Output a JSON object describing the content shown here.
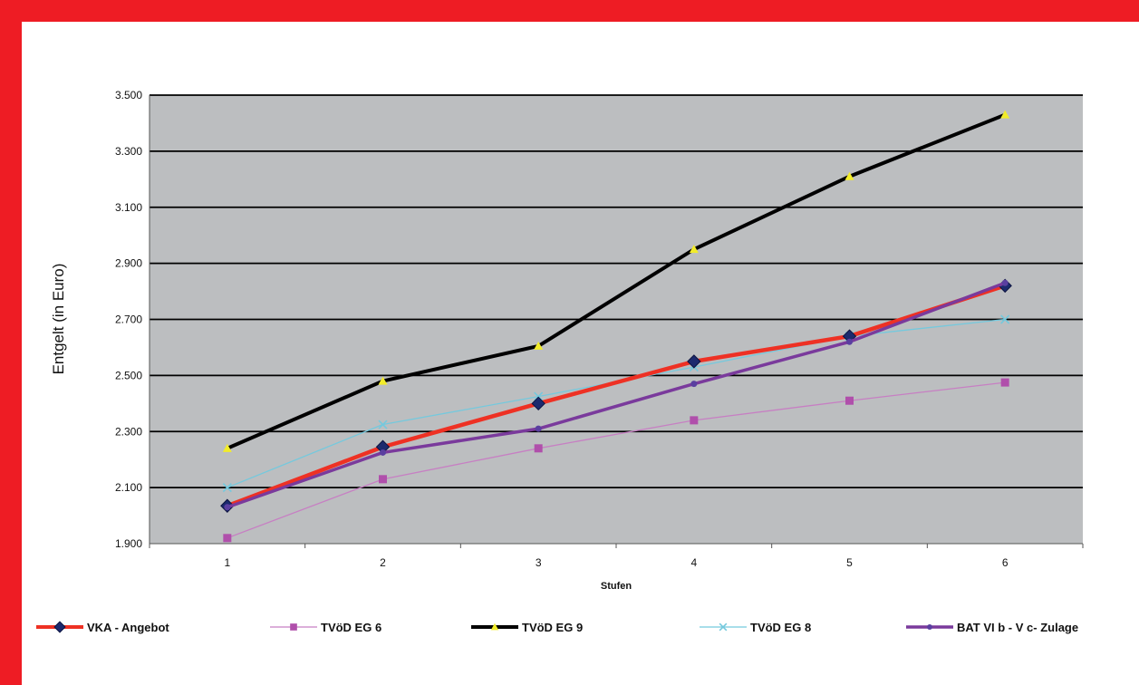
{
  "chart_data": {
    "type": "line",
    "title": "",
    "xlabel": "Stufen",
    "ylabel": "Entgelt  (in Euro)",
    "categories": [
      "1",
      "2",
      "3",
      "4",
      "5",
      "6"
    ],
    "ylim": [
      1900,
      3500
    ],
    "yticks": [
      1900,
      2100,
      2300,
      2500,
      2700,
      2900,
      3100,
      3300,
      3500
    ],
    "ytick_labels": [
      "1.900",
      "2.100",
      "2.300",
      "2.500",
      "2.700",
      "2.900",
      "3.100",
      "3.300",
      "3.500"
    ],
    "grid": true,
    "legend_position": "bottom",
    "series": [
      {
        "name": "VKA - Angebot",
        "values": [
          2035,
          2245,
          2400,
          2550,
          2640,
          2820
        ],
        "color": "#ee3124",
        "marker": "diamond",
        "marker_color": "#1c2a6e"
      },
      {
        "name": "TVöD EG 6",
        "values": [
          1920,
          2130,
          2240,
          2340,
          2410,
          2475
        ],
        "color": "#c77fc3",
        "marker": "square",
        "marker_color": "#b04fab"
      },
      {
        "name": "TVöD EG 9",
        "values": [
          2240,
          2480,
          2605,
          2950,
          3210,
          3430
        ],
        "color": "#000000",
        "marker": "triangle",
        "marker_color": "#f2ec2a"
      },
      {
        "name": "TVöD EG 8",
        "values": [
          2100,
          2325,
          2425,
          2530,
          2640,
          2700
        ],
        "color": "#75c9dd",
        "marker": "x",
        "marker_color": "#75c9dd"
      },
      {
        "name": "BAT VI b -  V c- Zulage",
        "values": [
          2030,
          2225,
          2310,
          2470,
          2620,
          2830
        ],
        "color": "#7a3a9c",
        "marker": "circle",
        "marker_color": "#5a3fa0"
      }
    ]
  }
}
